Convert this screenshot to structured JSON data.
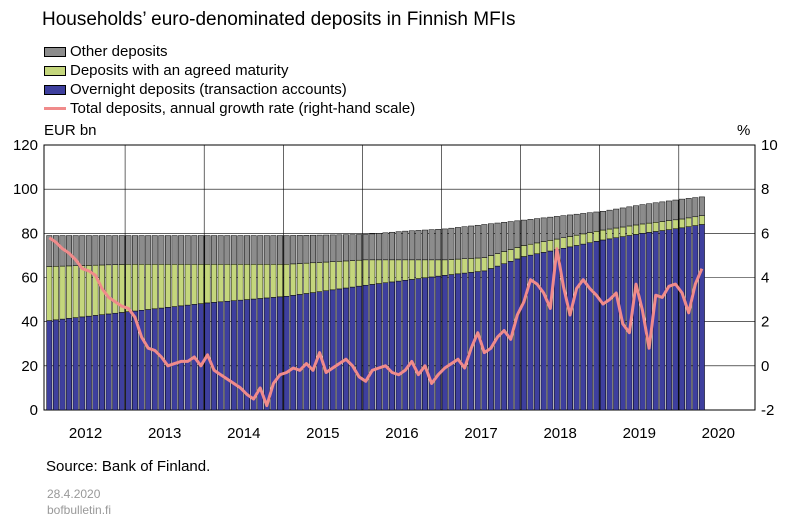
{
  "title": "Households’ euro-denominated deposits in Finnish MFIs",
  "legend": [
    {
      "label": "Other deposits",
      "color": "#8c8c8c",
      "kind": "box"
    },
    {
      "label": "Deposits with an agreed maturity",
      "color": "#c4d67c",
      "kind": "box"
    },
    {
      "label": "Overnight deposits (transaction accounts)",
      "color": "#3e3f9e",
      "kind": "box"
    },
    {
      "label": "Total deposits, annual growth rate (right-hand scale)",
      "color": "#f08b8b",
      "kind": "line"
    }
  ],
  "left_unit": "EUR bn",
  "right_unit": "%",
  "source": "Source: Bank of Finland.",
  "footer": {
    "date": "28.4.2020",
    "site": "bofbulletin.fi"
  },
  "chart_data": {
    "type": "bar",
    "stacked": true,
    "x_start": "2012-01",
    "x_end": "2020-03",
    "x_ticks": [
      "2012",
      "2013",
      "2014",
      "2015",
      "2016",
      "2017",
      "2018",
      "2019",
      "2020"
    ],
    "ylim_left": [
      0,
      120
    ],
    "yticks_left": [
      0,
      20,
      40,
      60,
      80,
      100,
      120
    ],
    "ylim_right": [
      -2,
      10
    ],
    "yticks_right": [
      -2,
      0,
      2,
      4,
      6,
      8,
      10
    ],
    "grid": true,
    "overnight_anchors": [
      [
        0,
        40.5
      ],
      [
        12,
        44.5
      ],
      [
        24,
        48.5
      ],
      [
        36,
        51.5
      ],
      [
        48,
        56.5
      ],
      [
        60,
        61
      ],
      [
        66,
        63
      ],
      [
        72,
        69.5
      ],
      [
        84,
        77
      ],
      [
        90,
        80
      ],
      [
        96,
        82.5
      ],
      [
        99,
        84
      ]
    ],
    "agreed_anchors": [
      [
        0,
        24.5
      ],
      [
        12,
        21.5
      ],
      [
        24,
        17.5
      ],
      [
        36,
        14.5
      ],
      [
        48,
        11.5
      ],
      [
        60,
        7
      ],
      [
        66,
        6
      ],
      [
        72,
        5
      ],
      [
        84,
        4.5
      ],
      [
        96,
        4
      ],
      [
        99,
        4
      ]
    ],
    "total_anchors": [
      [
        0,
        79
      ],
      [
        12,
        79
      ],
      [
        24,
        79
      ],
      [
        36,
        79
      ],
      [
        48,
        79.5
      ],
      [
        54,
        81
      ],
      [
        60,
        82
      ],
      [
        66,
        84
      ],
      [
        72,
        86
      ],
      [
        84,
        90
      ],
      [
        90,
        93
      ],
      [
        96,
        95.5
      ],
      [
        99,
        96.5
      ]
    ],
    "growth_rate_right": [
      5.8,
      5.6,
      5.3,
      5.1,
      4.8,
      4.4,
      4.3,
      4.1,
      3.5,
      3.1,
      2.9,
      2.7,
      2.6,
      2.2,
      1.3,
      0.8,
      0.7,
      0.4,
      0.0,
      0.1,
      0.2,
      0.2,
      0.4,
      0.0,
      0.5,
      -0.2,
      -0.4,
      -0.6,
      -0.8,
      -1.0,
      -1.3,
      -1.5,
      -1.0,
      -1.8,
      -0.8,
      -0.4,
      -0.3,
      -0.1,
      -0.2,
      0.1,
      -0.2,
      0.6,
      -0.3,
      -0.1,
      0.1,
      0.3,
      0.0,
      -0.5,
      -0.7,
      -0.2,
      -0.1,
      0.0,
      -0.3,
      -0.4,
      -0.2,
      0.2,
      -0.4,
      0.0,
      -0.8,
      -0.4,
      -0.1,
      0.1,
      0.3,
      -0.1,
      0.8,
      1.5,
      0.6,
      0.8,
      1.3,
      1.6,
      1.2,
      2.3,
      2.9,
      3.9,
      3.7,
      3.3,
      2.6,
      5.3,
      3.6,
      2.3,
      3.5,
      3.9,
      3.5,
      3.2,
      2.8,
      3.0,
      3.3,
      1.9,
      1.5,
      3.7,
      2.5,
      0.8,
      3.2,
      3.1,
      3.6,
      3.7,
      3.3,
      2.4,
      3.7,
      4.4
    ]
  }
}
